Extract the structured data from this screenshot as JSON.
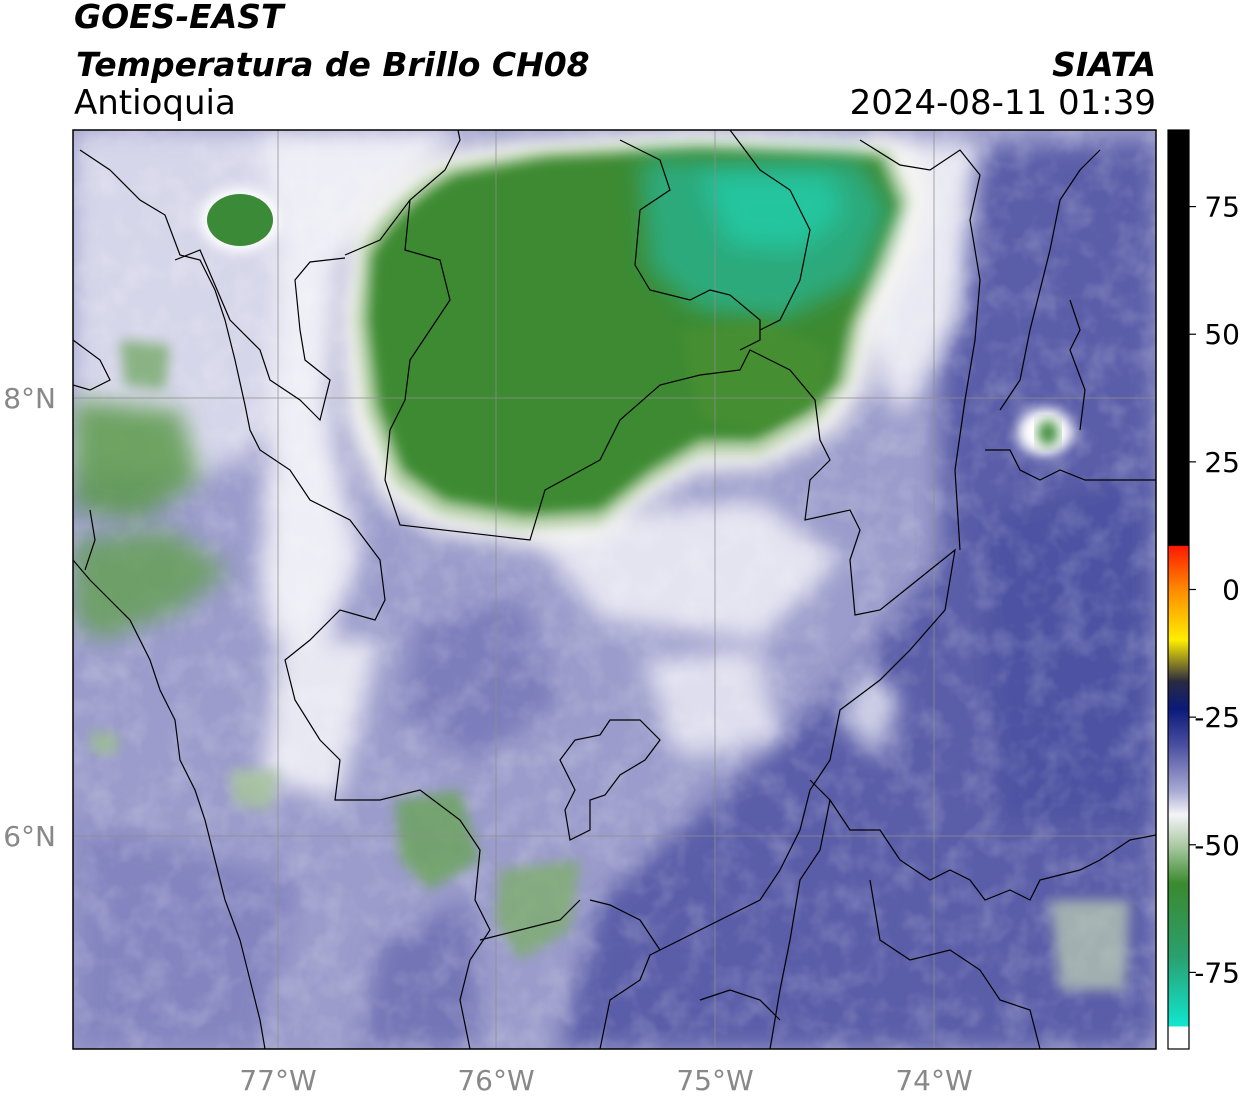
{
  "header": {
    "satellite": "GOES-EAST",
    "product": "Temperatura de Brillo CH08",
    "region": "Antioquia",
    "agency": "SIATA",
    "datetime": "2024-08-11 01:39"
  },
  "map": {
    "lon_range": [
      -77.95,
      -73.0
    ],
    "lat_range": [
      4.95,
      9.15
    ],
    "lon_ticks": [
      "77°W",
      "76°W",
      "75°W",
      "74°W"
    ],
    "lat_ticks": [
      "8°N",
      "6°N"
    ],
    "grid": true,
    "cloud_top_regions": [
      {
        "name": "cold",
        "approx_temp_c": -70
      },
      {
        "name": "mid",
        "approx_temp_c": -45
      }
    ]
  },
  "colorbar": {
    "ticks": [
      "75",
      "50",
      "25",
      "0",
      "-25",
      "-50",
      "-75"
    ],
    "tick_values": [
      75,
      50,
      25,
      0,
      -25,
      -50,
      -75
    ],
    "range": [
      -90,
      90
    ],
    "colors": {
      "warm": "#000000",
      "red": "#ff2200",
      "orange": "#ff9900",
      "yellow": "#ffee00",
      "navy": "#0a1a7a",
      "slate": "#4b4fa0",
      "white": "#f4f4f8",
      "green": "#3a8a2e",
      "cyan": "#10e6d0"
    }
  }
}
